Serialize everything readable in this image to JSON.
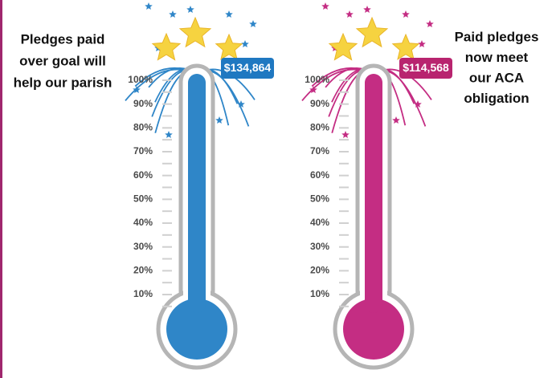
{
  "chart_data": [
    {
      "type": "thermometer",
      "note": [
        "Pledges paid",
        "over goal will",
        "help our parish"
      ],
      "annotation": "$134,864",
      "values": [
        100
      ],
      "color": "#2f86c8",
      "label_color": "#1f78c1",
      "ylim": [
        0,
        100
      ],
      "yticks": [
        {
          "value": 10,
          "label": "10%"
        },
        {
          "value": 20,
          "label": "20%"
        },
        {
          "value": 30,
          "label": "30%"
        },
        {
          "value": 40,
          "label": "40%"
        },
        {
          "value": 50,
          "label": "50%"
        },
        {
          "value": 60,
          "label": "60%"
        },
        {
          "value": 70,
          "label": "70%"
        },
        {
          "value": 80,
          "label": "80%"
        },
        {
          "value": 90,
          "label": "90%"
        },
        {
          "value": 100,
          "label": "100%"
        }
      ]
    },
    {
      "type": "thermometer",
      "note": [
        "Paid pledges",
        "now meet",
        "our ACA",
        "obligation"
      ],
      "annotation": "$114,568",
      "values": [
        100
      ],
      "color": "#c42d83",
      "label_color": "#b8246f",
      "ylim": [
        0,
        100
      ],
      "yticks": [
        {
          "value": 10,
          "label": "10%"
        },
        {
          "value": 20,
          "label": "20%"
        },
        {
          "value": 30,
          "label": "30%"
        },
        {
          "value": 40,
          "label": "40%"
        },
        {
          "value": 50,
          "label": "50%"
        },
        {
          "value": 60,
          "label": "60%"
        },
        {
          "value": 70,
          "label": "70%"
        },
        {
          "value": 80,
          "label": "80%"
        },
        {
          "value": 90,
          "label": "90%"
        },
        {
          "value": 100,
          "label": "100%"
        }
      ]
    }
  ]
}
